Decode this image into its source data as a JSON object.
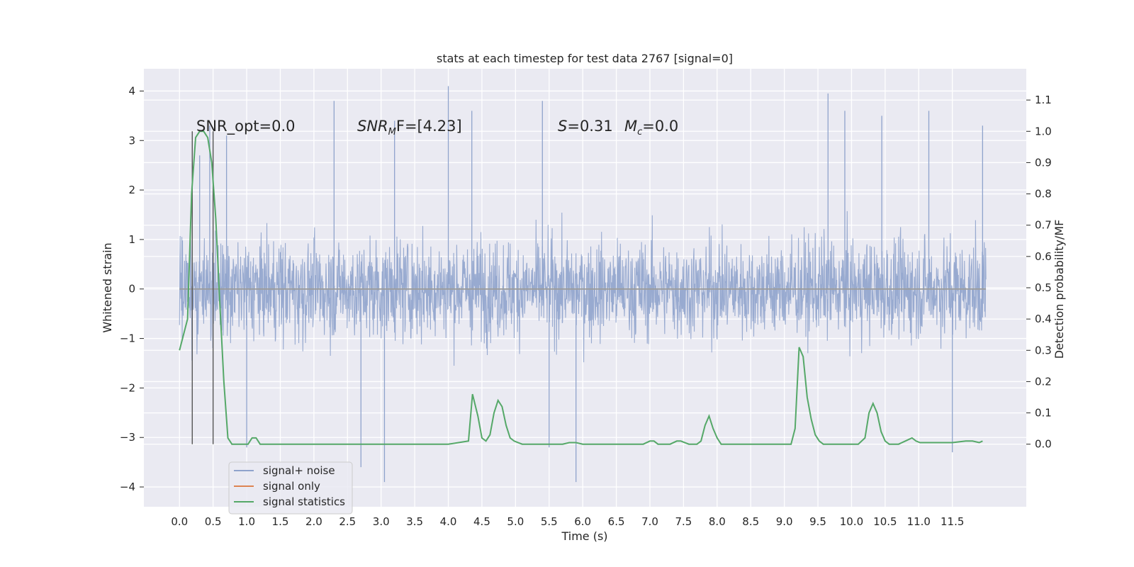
{
  "chart_data": {
    "type": "line",
    "title": "stats at each timestep for test data 2767 [signal=0]",
    "xlabel": "Time (s)",
    "ylabel": "Whitened strain",
    "y2label": "Detection probability/MF",
    "xlim": [
      -0.53,
      12.6
    ],
    "ylim": [
      -4.4,
      4.45
    ],
    "y2lim": [
      -0.2,
      1.2
    ],
    "x_ticks": [
      "0.0",
      "0.5",
      "1.0",
      "1.5",
      "2.0",
      "2.5",
      "3.0",
      "3.5",
      "4.0",
      "4.5",
      "5.0",
      "5.5",
      "6.0",
      "6.5",
      "7.0",
      "7.5",
      "8.0",
      "8.5",
      "9.0",
      "9.5",
      "10.0",
      "10.5",
      "11.0",
      "11.5"
    ],
    "y_ticks": [
      "4",
      "3",
      "2",
      "1",
      "0",
      "−1",
      "−2",
      "−3",
      "−4"
    ],
    "y2_ticks": [
      "1.1",
      "1.0",
      "0.9",
      "0.8",
      "0.7",
      "0.6",
      "0.5",
      "0.4",
      "0.3",
      "0.2",
      "0.1",
      "0.0"
    ],
    "grid": true,
    "legend_position": "lower-left",
    "annotations": {
      "snr_opt": "SNR_opt=0.0",
      "snr_mf_main": "SNR",
      "snr_mf_sub": "M",
      "snr_mf_rest": "F=[4.23]",
      "s_value": "S=0.31",
      "mc_main": "M",
      "mc_sub": "c",
      "mc_rest": "=0.0"
    },
    "vertical_markers_x": [
      0.19,
      0.5
    ],
    "series": [
      {
        "name": "signal+ noise",
        "color": "#8fa3cc",
        "axis": "left",
        "x_range": [
          0.0,
          12.0
        ],
        "envelope": {
          "typical_abs_max": 1.9,
          "peak_max": 4.1,
          "peak_min": -3.95
        },
        "spikes": [
          [
            0.3,
            2.7
          ],
          [
            0.45,
            3.3
          ],
          [
            0.7,
            3.1
          ],
          [
            1.0,
            -3.2
          ],
          [
            2.3,
            3.8
          ],
          [
            2.7,
            -3.6
          ],
          [
            3.05,
            -3.9
          ],
          [
            3.2,
            3.4
          ],
          [
            4.0,
            4.1
          ],
          [
            4.35,
            3.6
          ],
          [
            5.4,
            3.8
          ],
          [
            5.5,
            -3.2
          ],
          [
            5.9,
            -3.9
          ],
          [
            9.65,
            3.95
          ],
          [
            9.9,
            3.6
          ],
          [
            10.45,
            3.5
          ],
          [
            11.15,
            3.6
          ],
          [
            11.5,
            -3.3
          ],
          [
            11.95,
            3.3
          ]
        ]
      },
      {
        "name": "signal only",
        "color": "#dd8452",
        "axis": "left",
        "x": [
          0.0,
          12.0
        ],
        "y": [
          0.0,
          0.0
        ]
      },
      {
        "name": "signal statistics",
        "color": "#55a868",
        "axis": "right",
        "x": [
          0.0,
          0.06,
          0.12,
          0.18,
          0.24,
          0.3,
          0.36,
          0.42,
          0.48,
          0.54,
          0.6,
          0.66,
          0.72,
          0.78,
          0.84,
          0.9,
          0.96,
          1.02,
          1.08,
          1.14,
          1.2,
          1.26,
          1.32,
          1.5,
          2.0,
          2.5,
          3.0,
          3.5,
          4.0,
          4.3,
          4.36,
          4.44,
          4.5,
          4.56,
          4.62,
          4.68,
          4.74,
          4.8,
          4.86,
          4.92,
          4.98,
          5.04,
          5.1,
          5.5,
          5.7,
          5.8,
          5.9,
          6.0,
          6.5,
          6.9,
          7.0,
          7.06,
          7.12,
          7.2,
          7.3,
          7.4,
          7.46,
          7.52,
          7.58,
          7.64,
          7.7,
          7.76,
          7.82,
          7.88,
          7.94,
          8.0,
          8.06,
          8.12,
          8.2,
          8.6,
          9.0,
          9.1,
          9.16,
          9.22,
          9.28,
          9.34,
          9.4,
          9.46,
          9.52,
          9.58,
          9.64,
          9.7,
          9.8,
          9.9,
          10.0,
          10.1,
          10.2,
          10.26,
          10.32,
          10.38,
          10.44,
          10.5,
          10.56,
          10.62,
          10.7,
          10.8,
          10.9,
          10.96,
          11.02,
          11.1,
          11.3,
          11.5,
          11.7,
          11.8,
          11.9,
          11.95
        ],
        "y": [
          0.3,
          0.35,
          0.4,
          0.8,
          0.98,
          1.0,
          1.0,
          0.98,
          0.9,
          0.72,
          0.45,
          0.2,
          0.02,
          0.0,
          0.0,
          0.0,
          0.0,
          0.0,
          0.02,
          0.02,
          0.0,
          0.0,
          0.0,
          0.0,
          0.0,
          0.0,
          0.0,
          0.0,
          0.0,
          0.01,
          0.16,
          0.09,
          0.02,
          0.01,
          0.03,
          0.1,
          0.14,
          0.12,
          0.06,
          0.02,
          0.01,
          0.005,
          0.0,
          0.0,
          0.0,
          0.005,
          0.005,
          0.0,
          0.0,
          0.0,
          0.01,
          0.01,
          0.0,
          0.0,
          0.0,
          0.01,
          0.01,
          0.005,
          0.0,
          0.0,
          0.0,
          0.01,
          0.06,
          0.09,
          0.05,
          0.02,
          0.0,
          0.0,
          0.0,
          0.0,
          0.0,
          0.0,
          0.05,
          0.31,
          0.28,
          0.15,
          0.08,
          0.03,
          0.01,
          0.0,
          0.0,
          0.0,
          0.0,
          0.0,
          0.0,
          0.0,
          0.02,
          0.1,
          0.13,
          0.1,
          0.04,
          0.01,
          0.0,
          0.0,
          0.0,
          0.01,
          0.02,
          0.01,
          0.005,
          0.005,
          0.005,
          0.005,
          0.01,
          0.01,
          0.005,
          0.01
        ]
      }
    ]
  }
}
